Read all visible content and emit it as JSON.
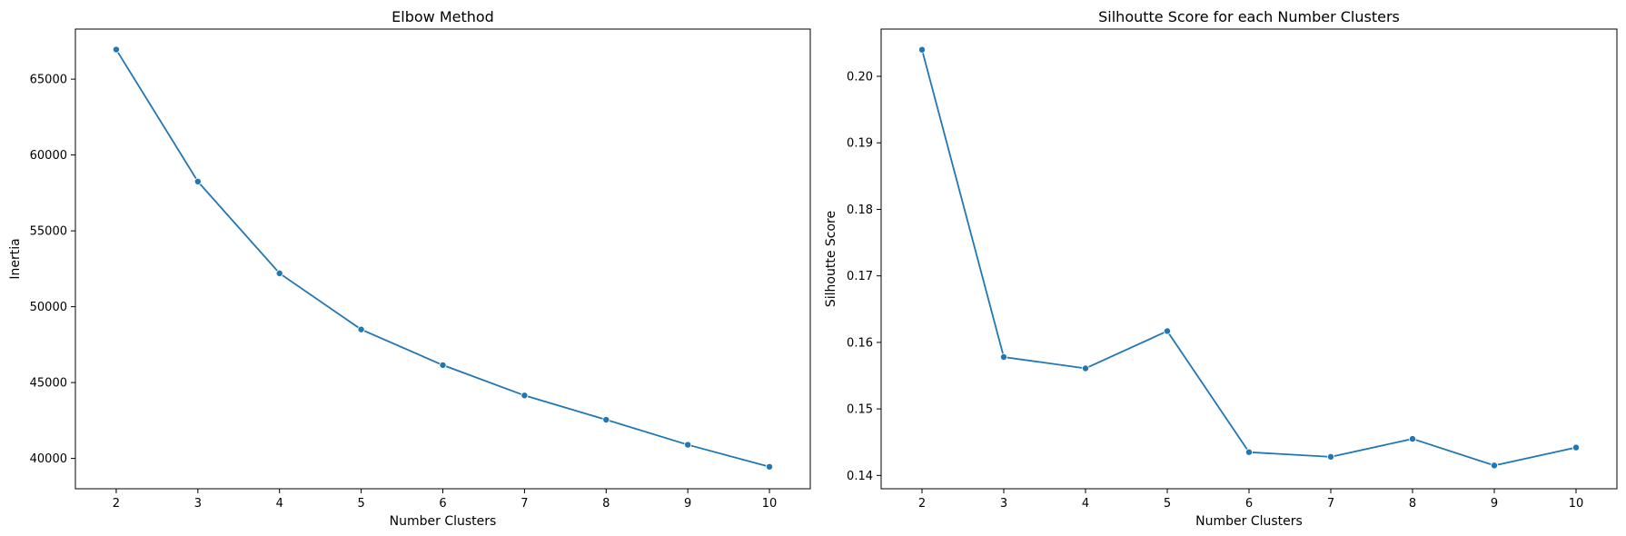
{
  "chart_data": [
    {
      "type": "line",
      "title": "Elbow Method",
      "xlabel": "Number Clusters",
      "ylabel": "Inertia",
      "x": [
        2,
        3,
        4,
        5,
        6,
        7,
        8,
        9,
        10
      ],
      "values": [
        66950,
        58250,
        52200,
        48500,
        46150,
        44150,
        42550,
        40900,
        39450
      ],
      "xlim": [
        1.5,
        10.5
      ],
      "ylim": [
        38000,
        68300
      ],
      "xticks": [
        "2",
        "3",
        "4",
        "5",
        "6",
        "7",
        "8",
        "9",
        "10"
      ],
      "yticks": [
        "40000",
        "45000",
        "50000",
        "55000",
        "60000",
        "65000"
      ],
      "ytick_values": [
        40000,
        45000,
        50000,
        55000,
        60000,
        65000
      ],
      "color": "#1f77b4",
      "grid": false,
      "legend": false
    },
    {
      "type": "line",
      "title": "Silhoutte Score for each Number Clusters",
      "xlabel": "Number Clusters",
      "ylabel": "Silhoutte Score",
      "x": [
        2,
        3,
        4,
        5,
        6,
        7,
        8,
        9,
        10
      ],
      "values": [
        0.204,
        0.1578,
        0.1561,
        0.1617,
        0.1435,
        0.1428,
        0.1455,
        0.1415,
        0.1442
      ],
      "xlim": [
        1.5,
        10.5
      ],
      "ylim": [
        0.138,
        0.2071
      ],
      "xticks": [
        "2",
        "3",
        "4",
        "5",
        "6",
        "7",
        "8",
        "9",
        "10"
      ],
      "yticks": [
        "0.14",
        "0.15",
        "0.16",
        "0.17",
        "0.18",
        "0.19",
        "0.20"
      ],
      "ytick_values": [
        0.14,
        0.15,
        0.16,
        0.17,
        0.18,
        0.19,
        0.2
      ],
      "color": "#1f77b4",
      "grid": false,
      "legend": false
    }
  ]
}
